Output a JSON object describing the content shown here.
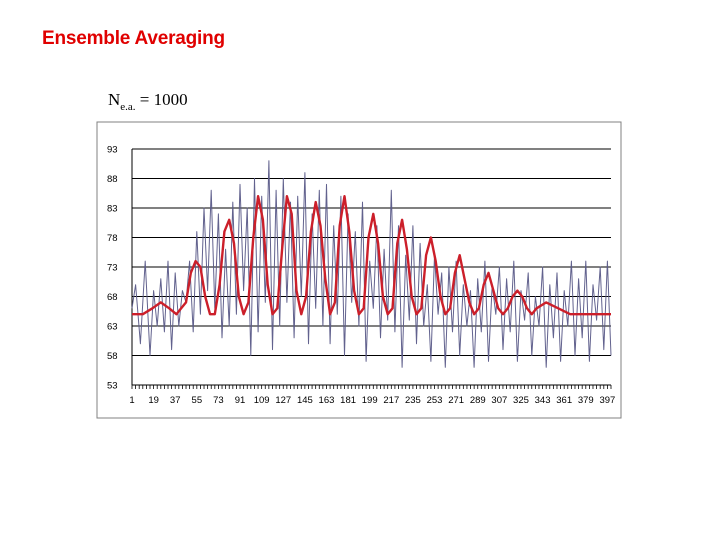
{
  "title": "Ensemble Averaging",
  "annotation": {
    "symbol": "N",
    "subscript": "e.a.",
    "equals": "= 1000"
  },
  "chart_data": {
    "type": "line",
    "title": "",
    "xlabel": "",
    "ylabel": "",
    "ylim": [
      53,
      93
    ],
    "yticks": [
      "93",
      "88",
      "83",
      "78",
      "73",
      "68",
      "63",
      "58",
      "53"
    ],
    "xticks": [
      "1",
      "19",
      "37",
      "55",
      "73",
      "91",
      "109",
      "127",
      "145",
      "163",
      "181",
      "199",
      "217",
      "235",
      "253",
      "271",
      "289",
      "307",
      "325",
      "343",
      "361",
      "379",
      "397"
    ],
    "x_range": [
      1,
      400
    ],
    "grid": "horizontal",
    "legend": "none",
    "colors": {
      "raw": "#5a5a88",
      "averaged": "#cc1f2a"
    },
    "series": [
      {
        "id": "raw",
        "x": [
          1,
          4,
          8,
          12,
          16,
          19,
          22,
          25,
          28,
          31,
          34,
          37,
          40,
          43,
          46,
          49,
          52,
          55,
          58,
          61,
          64,
          67,
          70,
          73,
          76,
          79,
          82,
          85,
          88,
          91,
          94,
          97,
          100,
          103,
          106,
          109,
          112,
          115,
          118,
          121,
          124,
          127,
          130,
          133,
          136,
          139,
          142,
          145,
          148,
          151,
          154,
          157,
          160,
          163,
          166,
          169,
          172,
          175,
          178,
          181,
          184,
          187,
          190,
          193,
          196,
          199,
          202,
          205,
          208,
          211,
          214,
          217,
          220,
          223,
          226,
          229,
          232,
          235,
          238,
          241,
          244,
          247,
          250,
          253,
          256,
          259,
          262,
          265,
          268,
          271,
          274,
          277,
          280,
          283,
          286,
          289,
          292,
          295,
          298,
          301,
          304,
          307,
          310,
          313,
          316,
          319,
          322,
          325,
          328,
          331,
          334,
          337,
          340,
          343,
          346,
          349,
          352,
          355,
          358,
          361,
          364,
          367,
          370,
          373,
          376,
          379,
          382,
          385,
          388,
          391,
          394,
          397,
          400
        ],
        "y": [
          66,
          70,
          60,
          74,
          58,
          69,
          63,
          71,
          62,
          74,
          59,
          72,
          63,
          69,
          67,
          74,
          62,
          79,
          65,
          83,
          69,
          86,
          66,
          82,
          61,
          76,
          63,
          84,
          65,
          87,
          69,
          83,
          58,
          88,
          62,
          85,
          67,
          91,
          59,
          86,
          63,
          88,
          67,
          84,
          61,
          85,
          68,
          89,
          60,
          82,
          66,
          86,
          63,
          87,
          60,
          80,
          65,
          85,
          58,
          82,
          67,
          79,
          63,
          84,
          57,
          74,
          66,
          80,
          61,
          76,
          64,
          86,
          62,
          80,
          56,
          75,
          64,
          80,
          60,
          77,
          63,
          70,
          57,
          75,
          65,
          72,
          56,
          73,
          62,
          74,
          58,
          70,
          63,
          69,
          56,
          71,
          62,
          74,
          57,
          70,
          65,
          73,
          59,
          71,
          62,
          74,
          57,
          69,
          64,
          72,
          58,
          68,
          63,
          73,
          56,
          70,
          61,
          72,
          57,
          69,
          63,
          74,
          58,
          71,
          61,
          74,
          57,
          70,
          64,
          73,
          59,
          74,
          58
        ]
      },
      {
        "id": "averaged",
        "x": [
          1,
          10,
          18,
          25,
          32,
          38,
          42,
          46,
          50,
          54,
          58,
          62,
          66,
          70,
          74,
          78,
          82,
          86,
          90,
          94,
          98,
          102,
          106,
          110,
          114,
          118,
          122,
          126,
          130,
          134,
          138,
          142,
          146,
          150,
          154,
          158,
          162,
          166,
          170,
          174,
          178,
          182,
          186,
          190,
          194,
          198,
          202,
          206,
          210,
          214,
          218,
          222,
          226,
          230,
          234,
          238,
          242,
          246,
          250,
          254,
          258,
          262,
          266,
          270,
          274,
          278,
          282,
          286,
          290,
          294,
          298,
          302,
          306,
          310,
          314,
          318,
          322,
          326,
          330,
          334,
          338,
          346,
          356,
          366,
          380,
          390,
          400
        ],
        "y": [
          65,
          65,
          66,
          67,
          66,
          65,
          66,
          67,
          72,
          74,
          73,
          68,
          65,
          65,
          70,
          79,
          81,
          77,
          68,
          65,
          67,
          78,
          85,
          81,
          70,
          65,
          66,
          76,
          85,
          82,
          69,
          65,
          68,
          79,
          84,
          80,
          71,
          65,
          67,
          80,
          85,
          79,
          69,
          65,
          66,
          78,
          82,
          77,
          68,
          65,
          66,
          77,
          81,
          76,
          68,
          65,
          66,
          75,
          78,
          74,
          68,
          65,
          66,
          72,
          75,
          71,
          67,
          65,
          66,
          70,
          72,
          69,
          66,
          65,
          66,
          68,
          69,
          68,
          66,
          65,
          66,
          67,
          66,
          65,
          65,
          65,
          65
        ]
      }
    ]
  }
}
